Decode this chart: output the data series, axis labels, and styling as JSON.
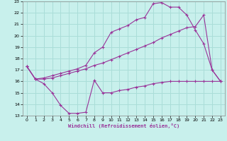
{
  "xlabel": "Windchill (Refroidissement éolien,°C)",
  "background_color": "#c8f0ec",
  "grid_color": "#aaddd8",
  "line_color": "#993399",
  "xlim": [
    -0.5,
    23.5
  ],
  "ylim": [
    13,
    23
  ],
  "xticks": [
    0,
    1,
    2,
    3,
    4,
    5,
    6,
    7,
    8,
    9,
    10,
    11,
    12,
    13,
    14,
    15,
    16,
    17,
    18,
    19,
    20,
    21,
    22,
    23
  ],
  "yticks": [
    13,
    14,
    15,
    16,
    17,
    18,
    19,
    20,
    21,
    22,
    23
  ],
  "line1_x": [
    0,
    1,
    2,
    3,
    4,
    5,
    6,
    7,
    8,
    9,
    10,
    11,
    12,
    13,
    14,
    15,
    16,
    17,
    18,
    19,
    20,
    21,
    22,
    23
  ],
  "line1_y": [
    17.3,
    16.2,
    15.8,
    15.0,
    13.9,
    13.2,
    13.2,
    13.3,
    16.1,
    15.0,
    15.0,
    15.2,
    15.3,
    15.5,
    15.6,
    15.8,
    15.9,
    16.0,
    16.0,
    16.0,
    16.0,
    16.0,
    16.0,
    16.0
  ],
  "line2_x": [
    0,
    1,
    2,
    3,
    4,
    5,
    6,
    7,
    8,
    9,
    10,
    11,
    12,
    13,
    14,
    15,
    16,
    17,
    18,
    19,
    20,
    21,
    22,
    23
  ],
  "line2_y": [
    17.3,
    16.2,
    16.2,
    16.3,
    16.5,
    16.7,
    16.9,
    17.1,
    17.4,
    17.6,
    17.9,
    18.2,
    18.5,
    18.8,
    19.1,
    19.4,
    19.8,
    20.1,
    20.4,
    20.7,
    20.8,
    21.8,
    17.0,
    16.0
  ],
  "line3_x": [
    0,
    1,
    2,
    3,
    4,
    5,
    6,
    7,
    8,
    9,
    10,
    11,
    12,
    13,
    14,
    15,
    16,
    17,
    18,
    19,
    20,
    21,
    22,
    23
  ],
  "line3_y": [
    17.3,
    16.2,
    16.3,
    16.5,
    16.7,
    16.9,
    17.1,
    17.4,
    18.5,
    19.0,
    20.3,
    20.6,
    20.9,
    21.4,
    21.6,
    22.8,
    22.9,
    22.5,
    22.5,
    21.8,
    20.5,
    19.3,
    17.0,
    16.0
  ]
}
